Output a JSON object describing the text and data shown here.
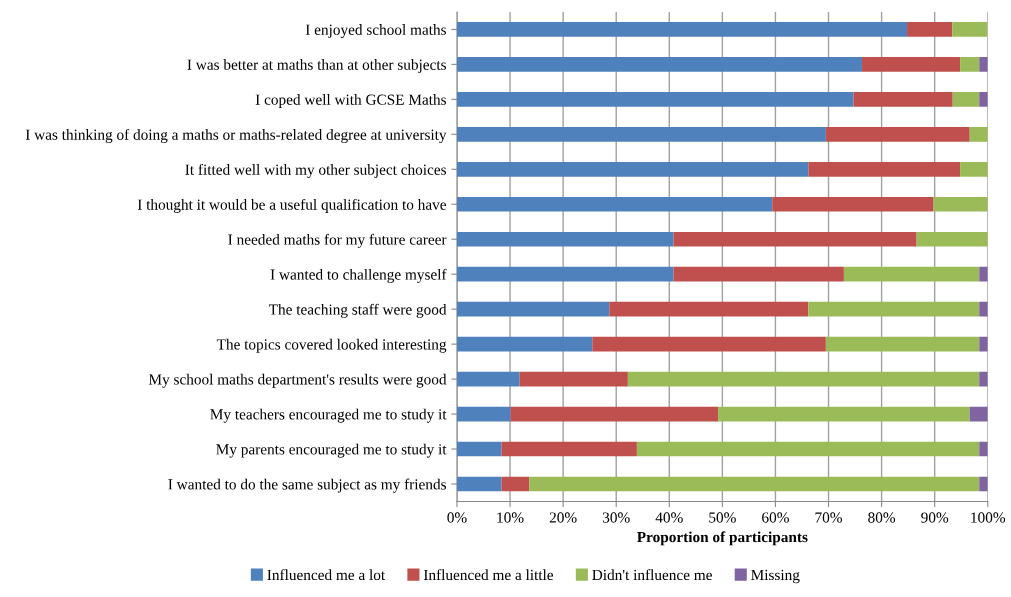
{
  "chart_data": {
    "type": "bar",
    "orientation": "horizontal",
    "stacked": true,
    "xlabel": "Proportion of participants",
    "categories": [
      "I enjoyed school maths",
      "I was better at maths than at other subjects",
      "I coped well with GCSE Maths",
      "I was thinking of doing a maths or maths-related degree at university",
      "It fitted well with my other subject choices",
      "I thought it would be a useful qualification to have",
      "I needed maths for my future career",
      "I wanted to challenge myself",
      "The teaching staff were good",
      "The topics covered looked interesting",
      "My school maths department's results were good",
      "My teachers encouraged me to study it",
      "My parents encouraged me to study it",
      "I wanted to do the same subject as my friends"
    ],
    "series": [
      {
        "name": "Influenced me a lot",
        "color": "#4f81bd",
        "values": [
          84.8,
          76.3,
          74.7,
          69.5,
          66.2,
          59.4,
          40.8,
          40.8,
          28.7,
          25.5,
          11.8,
          10.1,
          8.4,
          8.4
        ]
      },
      {
        "name": "Influenced me a little",
        "color": "#c0504d",
        "values": [
          8.5,
          18.5,
          18.7,
          27.1,
          28.6,
          30.4,
          45.8,
          32.1,
          37.5,
          44.0,
          20.4,
          39.1,
          25.5,
          5.2
        ]
      },
      {
        "name": "Didn't influence me",
        "color": "#9bbb59",
        "values": [
          6.6,
          3.6,
          5.0,
          3.4,
          5.2,
          10.2,
          13.4,
          25.5,
          32.2,
          28.9,
          66.2,
          47.4,
          64.5,
          84.8
        ]
      },
      {
        "name": "Missing",
        "color": "#8064a2",
        "values": [
          0,
          1.6,
          1.6,
          0,
          0,
          0,
          0,
          1.6,
          1.6,
          1.6,
          1.6,
          3.4,
          1.6,
          1.6
        ]
      }
    ],
    "xlim": [
      0,
      100
    ],
    "xticks": [
      {
        "value": 0,
        "label": "0%"
      },
      {
        "value": 10,
        "label": "10%"
      },
      {
        "value": 20,
        "label": "20%"
      },
      {
        "value": 30,
        "label": "30%"
      },
      {
        "value": 40,
        "label": "40%"
      },
      {
        "value": 50,
        "label": "50%"
      },
      {
        "value": 60,
        "label": "60%"
      },
      {
        "value": 70,
        "label": "70%"
      },
      {
        "value": 80,
        "label": "80%"
      },
      {
        "value": 90,
        "label": "90%"
      },
      {
        "value": 100,
        "label": "100%"
      }
    ],
    "grid": "x",
    "legend": "bottom"
  }
}
